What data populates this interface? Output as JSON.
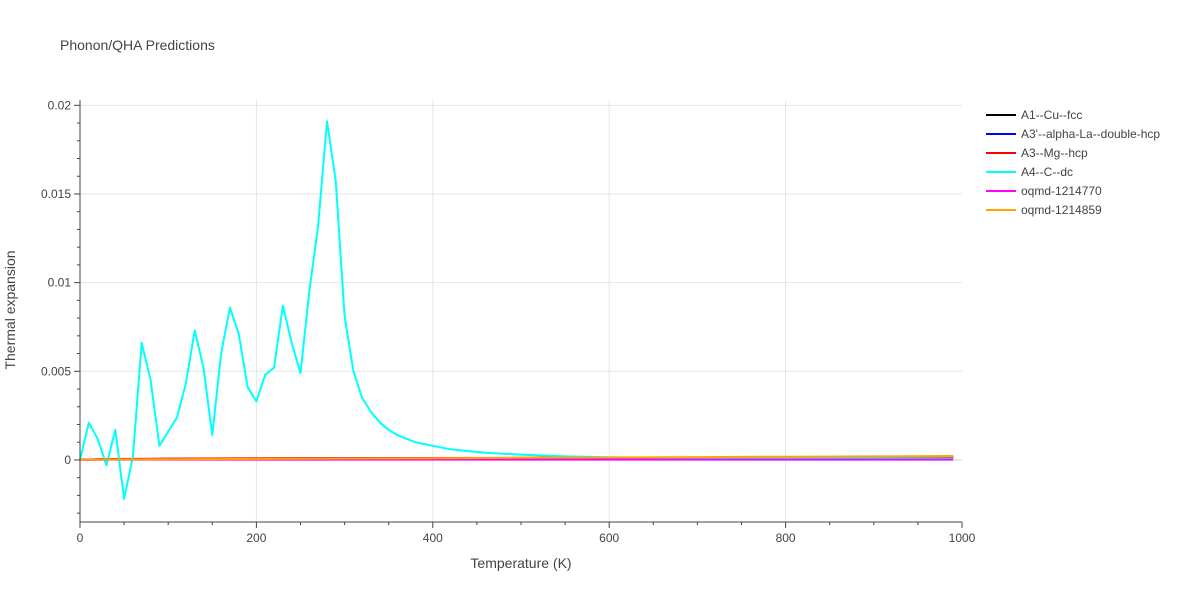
{
  "chart_data": {
    "type": "line",
    "title": "Phonon/QHA Predictions",
    "xlabel": "Temperature (K)",
    "ylabel": "Thermal expansion",
    "xlim": [
      0,
      1000
    ],
    "ylim": [
      -0.0035,
      0.0203
    ],
    "x_ticks": [
      0,
      200,
      400,
      600,
      800,
      1000
    ],
    "x_tick_labels": [
      "0",
      "200",
      "400",
      "600",
      "800",
      "1000"
    ],
    "y_ticks": [
      0,
      0.005,
      0.01,
      0.015,
      0.02
    ],
    "y_tick_labels": [
      "0",
      "0.005",
      "0.01",
      "0.015",
      "0.02"
    ],
    "grid": true,
    "legend_position": "right",
    "series": [
      {
        "name": "A1--Cu--fcc",
        "color": "#000000",
        "x": [
          0,
          20,
          50,
          100,
          150,
          200,
          300,
          400,
          500,
          600,
          700,
          800,
          900,
          990
        ],
        "y": [
          0.0,
          3e-05,
          5e-05,
          6e-05,
          7e-05,
          8e-05,
          9e-05,
          0.0001,
          0.00011,
          0.00012,
          0.00013,
          0.00014,
          0.00015,
          0.00016
        ]
      },
      {
        "name": "A3'--alpha-La--double-hcp",
        "color": "#0000ff",
        "x": [
          0,
          20,
          50,
          100,
          150,
          200,
          300,
          400,
          500,
          600,
          700,
          800,
          900,
          990
        ],
        "y": [
          0.0,
          3e-05,
          5e-05,
          6e-05,
          7e-05,
          8e-05,
          9e-05,
          0.0001,
          0.00011,
          0.00012,
          0.00013,
          0.00014,
          0.00015,
          0.00016
        ]
      },
      {
        "name": "A3--Mg--hcp",
        "color": "#ff0000",
        "x": [
          0,
          20,
          50,
          100,
          150,
          200,
          300,
          400,
          500,
          600,
          700,
          800,
          900,
          990
        ],
        "y": [
          0.0,
          4e-05,
          6e-05,
          7e-05,
          8e-05,
          9e-05,
          0.0001,
          0.00011,
          0.00012,
          0.00013,
          0.00014,
          0.00015,
          0.00016,
          0.00017
        ]
      },
      {
        "name": "A4--C--dc",
        "color": "#00ffff",
        "x": [
          0,
          10,
          20,
          30,
          40,
          50,
          60,
          70,
          80,
          90,
          100,
          110,
          120,
          130,
          140,
          150,
          160,
          170,
          180,
          190,
          200,
          210,
          220,
          230,
          240,
          250,
          260,
          270,
          280,
          290,
          300,
          310,
          320,
          330,
          340,
          350,
          360,
          370,
          380,
          390,
          400,
          420,
          440,
          460,
          480,
          500,
          550,
          600,
          650,
          700,
          800,
          900,
          990
        ],
        "y": [
          0.0,
          0.0021,
          0.0012,
          -0.0003,
          0.0017,
          -0.0022,
          0.0002,
          0.0066,
          0.0045,
          0.0008,
          0.0016,
          0.0024,
          0.0043,
          0.0073,
          0.0052,
          0.0014,
          0.006,
          0.0086,
          0.0071,
          0.0041,
          0.0033,
          0.0048,
          0.0052,
          0.0087,
          0.0066,
          0.0049,
          0.0095,
          0.0132,
          0.0191,
          0.0157,
          0.0081,
          0.005,
          0.0035,
          0.0027,
          0.0021,
          0.0017,
          0.0014,
          0.0012,
          0.001,
          0.0009,
          0.0008,
          0.0006,
          0.0005,
          0.0004,
          0.00035,
          0.0003,
          0.0002,
          0.00015,
          0.00013,
          0.00012,
          0.0001,
          9e-05,
          8e-05
        ]
      },
      {
        "name": "oqmd-1214770",
        "color": "#ff00ff",
        "x": [
          0,
          20,
          50,
          100,
          150,
          200,
          300,
          400,
          500,
          600,
          700,
          800,
          900,
          990
        ],
        "y": [
          0.0,
          1e-05,
          2e-05,
          2e-05,
          2e-05,
          2e-05,
          2e-05,
          2e-05,
          2e-05,
          2e-05,
          2e-05,
          2e-05,
          2e-05,
          2e-05
        ]
      },
      {
        "name": "oqmd-1214859",
        "color": "#ffa500",
        "x": [
          0,
          20,
          50,
          100,
          150,
          200,
          300,
          400,
          500,
          600,
          700,
          800,
          900,
          990
        ],
        "y": [
          0.0,
          2e-05,
          3e-05,
          4e-05,
          5e-05,
          6e-05,
          8e-05,
          0.0001,
          0.00012,
          0.00014,
          0.00016,
          0.00018,
          0.0002,
          0.00022
        ]
      }
    ]
  }
}
